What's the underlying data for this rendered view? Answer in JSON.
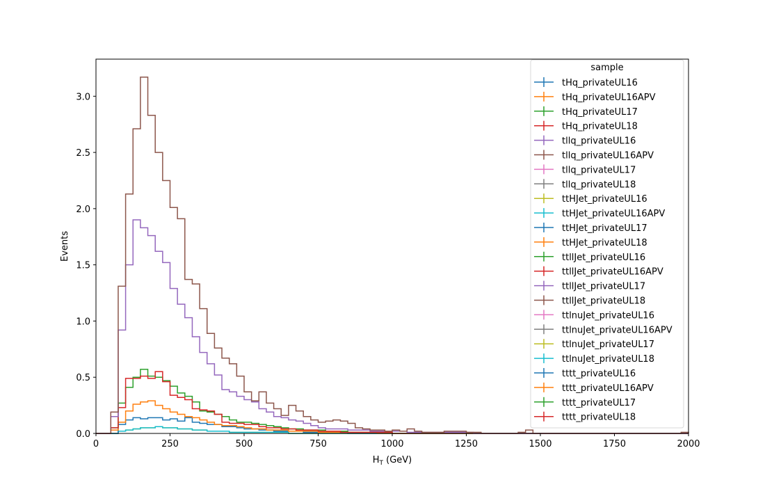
{
  "chart_data": {
    "type": "histogram-step",
    "xlabel": "H",
    "xlabel_sub": "T",
    "xlabel_unit": " (GeV)",
    "ylabel": "Events",
    "xlim": [
      0,
      2000
    ],
    "ylim": [
      0,
      3.33
    ],
    "xticks": [
      0,
      250,
      500,
      750,
      1000,
      1250,
      1500,
      1750,
      2000
    ],
    "yticks": [
      0.0,
      0.5,
      1.0,
      1.5,
      2.0,
      2.5,
      3.0
    ],
    "ytick_labels": [
      "0.0",
      "0.5",
      "1.0",
      "1.5",
      "2.0",
      "2.5",
      "3.0"
    ],
    "grid": false,
    "legend": {
      "title": "sample",
      "placement": "top-right"
    },
    "bin_width": 25,
    "series": [
      {
        "name": "tHq_privateUL16",
        "color": "#1f77b4",
        "values": []
      },
      {
        "name": "tHq_privateUL16APV",
        "color": "#ff7f0e",
        "values": []
      },
      {
        "name": "tHq_privateUL17",
        "color": "#2ca02c",
        "values": []
      },
      {
        "name": "tHq_privateUL18",
        "color": "#d62728",
        "values": []
      },
      {
        "name": "tllq_privateUL16",
        "color": "#9467bd",
        "values": []
      },
      {
        "name": "tllq_privateUL16APV",
        "color": "#8c564b",
        "values": []
      },
      {
        "name": "tllq_privateUL17",
        "color": "#e377c2",
        "values": []
      },
      {
        "name": "tllq_privateUL18",
        "color": "#7f7f7f",
        "values": []
      },
      {
        "name": "ttHJet_privateUL16",
        "color": "#bcbd22",
        "values": [
          0,
          0,
          0,
          0.02,
          0.03,
          0.04,
          0.05,
          0.05,
          0.06,
          0.05,
          0.05,
          0.04,
          0.04,
          0.03,
          0.03,
          0.02,
          0.02,
          0.02,
          0.01,
          0.01,
          0.01,
          0.01,
          0.01,
          0.01,
          0.01,
          0.01
        ]
      },
      {
        "name": "ttHJet_privateUL16APV",
        "color": "#17becf",
        "values": [
          0,
          0,
          0,
          0.02,
          0.03,
          0.04,
          0.05,
          0.05,
          0.06,
          0.05,
          0.05,
          0.04,
          0.04,
          0.03,
          0.03,
          0.02,
          0.02,
          0.02,
          0.01,
          0.01,
          0.01,
          0.01,
          0.01,
          0.01,
          0.01,
          0.01
        ]
      },
      {
        "name": "ttHJet_privateUL17",
        "color": "#1f77b4",
        "values": [
          0,
          0,
          0,
          0.08,
          0.12,
          0.14,
          0.13,
          0.14,
          0.14,
          0.12,
          0.13,
          0.11,
          0.14,
          0.1,
          0.09,
          0.08,
          0.08,
          0.06,
          0.06,
          0.05,
          0.04,
          0.04,
          0.03,
          0.03,
          0.02,
          0.02,
          0.02,
          0.02,
          0.01,
          0.01,
          0.01,
          0.01,
          0.01,
          0.01
        ]
      },
      {
        "name": "ttHJet_privateUL18",
        "color": "#ff7f0e",
        "values": [
          0,
          0,
          0.03,
          0.1,
          0.2,
          0.26,
          0.28,
          0.29,
          0.25,
          0.22,
          0.19,
          0.17,
          0.15,
          0.14,
          0.12,
          0.1,
          0.08,
          0.07,
          0.07,
          0.06,
          0.05,
          0.04,
          0.04,
          0.03,
          0.03,
          0.03,
          0.02,
          0.02,
          0.02,
          0.02,
          0.01,
          0.01,
          0.01,
          0.01,
          0.01,
          0.01,
          0.01,
          0.01
        ]
      },
      {
        "name": "ttllJet_privateUL16",
        "color": "#2ca02c",
        "values": [
          0,
          0,
          0.05,
          0.27,
          0.41,
          0.5,
          0.57,
          0.51,
          0.5,
          0.47,
          0.42,
          0.36,
          0.33,
          0.28,
          0.2,
          0.19,
          0.17,
          0.15,
          0.12,
          0.1,
          0.1,
          0.09,
          0.08,
          0.07,
          0.06,
          0.05,
          0.04,
          0.04,
          0.03,
          0.03,
          0.03,
          0.02,
          0.02,
          0.02,
          0.01,
          0.01,
          0.01,
          0.01,
          0.01,
          0.01
        ]
      },
      {
        "name": "ttllJet_privateUL16APV",
        "color": "#d62728",
        "values": [
          0,
          0,
          0.05,
          0.23,
          0.49,
          0.49,
          0.51,
          0.49,
          0.55,
          0.46,
          0.34,
          0.32,
          0.3,
          0.22,
          0.21,
          0.2,
          0.17,
          0.1,
          0.09,
          0.09,
          0.08,
          0.08,
          0.06,
          0.05,
          0.05,
          0.04,
          0.04,
          0.03,
          0.03,
          0.03,
          0.02,
          0.02,
          0.02,
          0.01,
          0.01,
          0.01,
          0.01,
          0.01,
          0.01,
          0.01
        ]
      },
      {
        "name": "ttllJet_privateUL17",
        "color": "#9467bd",
        "values": [
          0,
          0,
          0.15,
          0.92,
          1.5,
          1.9,
          1.83,
          1.76,
          1.62,
          1.52,
          1.29,
          1.15,
          1.03,
          0.86,
          0.72,
          0.62,
          0.52,
          0.39,
          0.37,
          0.33,
          0.3,
          0.28,
          0.22,
          0.19,
          0.15,
          0.14,
          0.12,
          0.11,
          0.09,
          0.07,
          0.05,
          0.04,
          0.04,
          0.04,
          0.03,
          0.03,
          0.03,
          0.02,
          0.02,
          0.02,
          0.02,
          0.02,
          0.01,
          0.01,
          0.01,
          0.01,
          0.01,
          0.01,
          0.01,
          0.01,
          0.01
        ]
      },
      {
        "name": "ttllJet_privateUL18",
        "color": "#8c564b",
        "values": [
          0,
          0,
          0.19,
          1.31,
          2.13,
          2.71,
          3.17,
          2.83,
          2.5,
          2.25,
          2.01,
          1.91,
          1.37,
          1.33,
          1.11,
          0.89,
          0.76,
          0.67,
          0.62,
          0.51,
          0.37,
          0.29,
          0.37,
          0.27,
          0.22,
          0.16,
          0.25,
          0.2,
          0.15,
          0.12,
          0.1,
          0.11,
          0.12,
          0.11,
          0.09,
          0.05,
          0.04,
          0.03,
          0.03,
          0.02,
          0.03,
          0.02,
          0.04,
          0.02,
          0.01,
          0.01,
          0.01,
          0.02,
          0.02,
          0.02,
          0.01,
          0.01,
          0,
          0,
          0,
          0,
          0,
          0.01,
          0.03,
          0,
          0,
          0,
          0,
          0,
          0,
          0,
          0,
          0,
          0,
          0,
          0,
          0,
          0,
          0,
          0,
          0,
          0,
          0,
          0,
          0.01
        ]
      },
      {
        "name": "ttlnuJet_privateUL16",
        "color": "#e377c2",
        "values": []
      },
      {
        "name": "ttlnuJet_privateUL16APV",
        "color": "#7f7f7f",
        "values": []
      },
      {
        "name": "ttlnuJet_privateUL17",
        "color": "#bcbd22",
        "values": []
      },
      {
        "name": "ttlnuJet_privateUL18",
        "color": "#17becf",
        "values": []
      },
      {
        "name": "tttt_privateUL16",
        "color": "#1f77b4",
        "values": []
      },
      {
        "name": "tttt_privateUL16APV",
        "color": "#ff7f0e",
        "values": []
      },
      {
        "name": "tttt_privateUL17",
        "color": "#2ca02c",
        "values": []
      },
      {
        "name": "tttt_privateUL18",
        "color": "#d62728",
        "values": []
      }
    ]
  }
}
